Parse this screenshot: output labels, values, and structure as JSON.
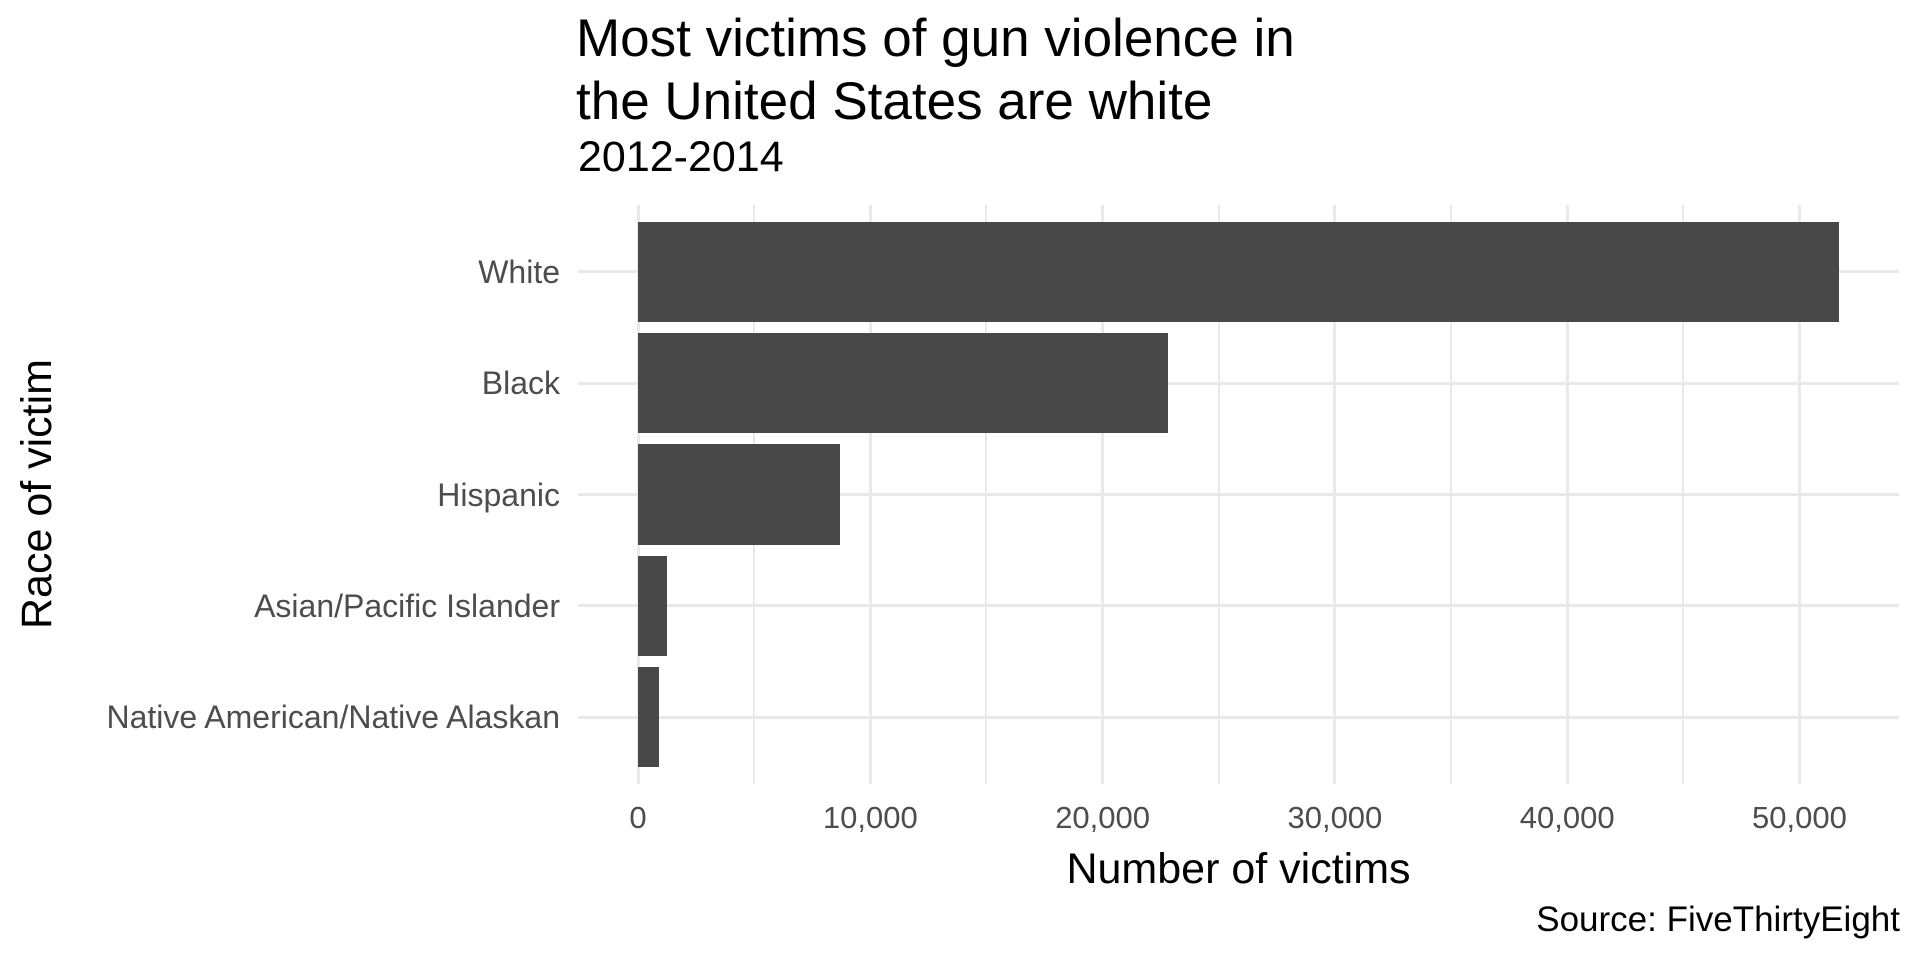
{
  "chart_data": {
    "type": "bar",
    "orientation": "horizontal",
    "title_lines": [
      "Most victims of gun violence in",
      "the United States are white"
    ],
    "subtitle": "2012-2014",
    "xlabel": "Number of victims",
    "ylabel": "Race of victim",
    "caption": "Source: FiveThirtyEight",
    "categories": [
      "White",
      "Black",
      "Hispanic",
      "Asian/Pacific Islander",
      "Native American/Native Alaskan"
    ],
    "values": [
      51700,
      22800,
      8700,
      1250,
      900
    ],
    "x_domain": [
      -2585,
      54285
    ],
    "x_ticks": [
      {
        "value": 0,
        "label": "0"
      },
      {
        "value": 10000,
        "label": "10,000"
      },
      {
        "value": 20000,
        "label": "20,000"
      },
      {
        "value": 30000,
        "label": "30,000"
      },
      {
        "value": 40000,
        "label": "40,000"
      },
      {
        "value": 50000,
        "label": "50,000"
      }
    ],
    "x_minor_ticks": [
      5000,
      15000,
      25000,
      35000,
      45000
    ],
    "grid": "vertical major+minor, horizontal major at category centers",
    "legend_position": "none",
    "colors": {
      "bar": "#484848",
      "grid": "#e9e9e9",
      "axis_text": "#4d4d4d",
      "text": "#000000",
      "background": "#ffffff"
    }
  }
}
